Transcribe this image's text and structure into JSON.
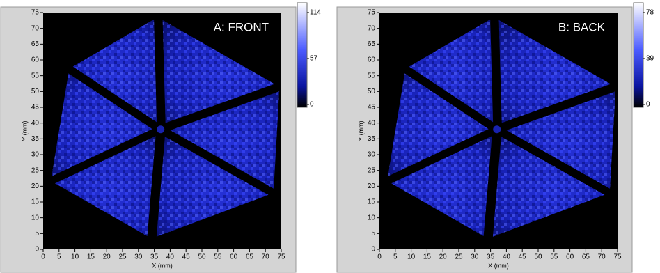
{
  "chart_data": [
    {
      "type": "heatmap",
      "title": "A: FRONT",
      "x_label": "X (mm)",
      "y_label": "Y (mm)",
      "xlim": [
        0,
        75
      ],
      "ylim": [
        0,
        75
      ],
      "xticks": [
        0,
        5,
        10,
        15,
        20,
        25,
        30,
        35,
        40,
        45,
        50,
        55,
        60,
        65,
        70,
        75
      ],
      "yticks": [
        0,
        5,
        10,
        15,
        20,
        25,
        30,
        35,
        40,
        45,
        50,
        55,
        60,
        65,
        70,
        75
      ],
      "colorbar": {
        "zlim": [
          0,
          114
        ],
        "ticks": [
          0,
          57,
          114
        ]
      }
    },
    {
      "type": "heatmap",
      "title": "B: BACK",
      "x_label": "X (mm)",
      "y_label": "Y (mm)",
      "xlim": [
        0,
        75
      ],
      "ylim": [
        0,
        75
      ],
      "xticks": [
        0,
        5,
        10,
        15,
        20,
        25,
        30,
        35,
        40,
        45,
        50,
        55,
        60,
        65,
        70,
        75
      ],
      "yticks": [
        0,
        5,
        10,
        15,
        20,
        25,
        30,
        35,
        40,
        45,
        50,
        55,
        60,
        65,
        70,
        75
      ],
      "colorbar": {
        "zlim": [
          0,
          78
        ],
        "ticks": [
          0,
          39,
          78
        ]
      }
    }
  ]
}
